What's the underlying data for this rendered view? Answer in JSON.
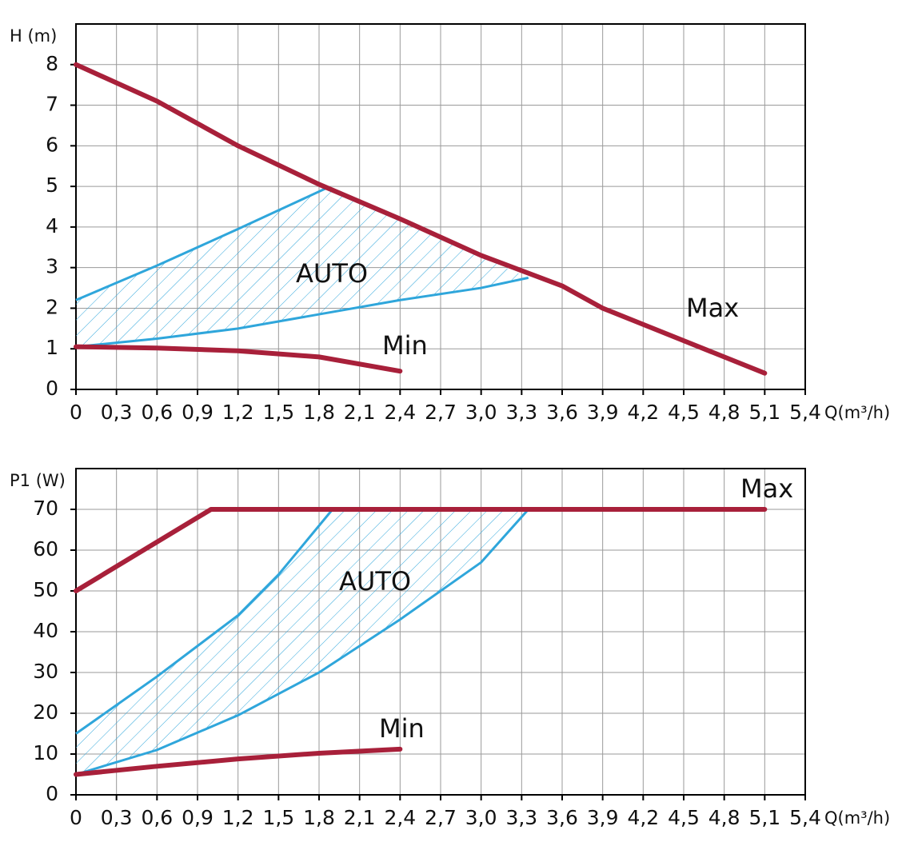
{
  "chart_data": [
    {
      "type": "line",
      "y_label": "H (m)",
      "x_label": "Q(m³/h)",
      "xlim": [
        0,
        5.4
      ],
      "ylim": [
        0,
        9
      ],
      "xticks": [
        0,
        {
          "value": 0.3,
          "label": "0,3"
        },
        {
          "value": 0.6,
          "label": "0,6"
        },
        {
          "value": 0.9,
          "label": "0,9"
        },
        {
          "value": 1.2,
          "label": "1,2"
        },
        {
          "value": 1.5,
          "label": "1,5"
        },
        {
          "value": 1.8,
          "label": "1,8"
        },
        {
          "value": 2.1,
          "label": "2,1"
        },
        {
          "value": 2.4,
          "label": "2,4"
        },
        {
          "value": 2.7,
          "label": "2,7"
        },
        {
          "value": 3.0,
          "label": "3,0"
        },
        {
          "value": 3.3,
          "label": "3,3"
        },
        {
          "value": 3.6,
          "label": "3,6"
        },
        {
          "value": 3.9,
          "label": "3,9"
        },
        {
          "value": 4.2,
          "label": "4,2"
        },
        {
          "value": 4.5,
          "label": "4,5"
        },
        {
          "value": 4.8,
          "label": "4,8"
        },
        {
          "value": 5.1,
          "label": "5,1"
        },
        {
          "value": 5.4,
          "label": "5,4"
        }
      ],
      "yticks": [
        0,
        1,
        2,
        3,
        4,
        5,
        6,
        7,
        8
      ],
      "grid": true,
      "series": [
        {
          "name": "Max",
          "color": "#a8203a",
          "x": [
            0,
            0.6,
            1.2,
            1.8,
            2.4,
            3.0,
            3.6,
            3.9,
            4.2,
            4.8,
            5.1
          ],
          "values": [
            8,
            7.1,
            6.0,
            5.05,
            4.2,
            3.3,
            2.55,
            2.0,
            1.6,
            0.8,
            0.4
          ]
        },
        {
          "name": "Min",
          "color": "#a8203a",
          "x": [
            0,
            0.6,
            1.2,
            1.8,
            2.4
          ],
          "values": [
            1.05,
            1.02,
            0.95,
            0.8,
            0.45
          ]
        }
      ],
      "auto_region": {
        "name": "AUTO",
        "color": "#2fa6db",
        "upper": {
          "x": [
            0,
            0.6,
            1.2,
            1.85
          ],
          "values": [
            2.2,
            3.05,
            3.95,
            4.95
          ]
        },
        "lower": {
          "x": [
            0,
            0.6,
            1.2,
            1.8,
            2.4,
            3.0,
            3.35
          ],
          "values": [
            1.05,
            1.25,
            1.5,
            1.85,
            2.2,
            2.5,
            2.75
          ]
        }
      }
    },
    {
      "type": "line",
      "y_label": "P1 (W)",
      "x_label": "Q(m³/h)",
      "xlim": [
        0,
        5.4
      ],
      "ylim": [
        0,
        80
      ],
      "xticks": [
        0,
        {
          "value": 0.3,
          "label": "0,3"
        },
        {
          "value": 0.6,
          "label": "0,6"
        },
        {
          "value": 0.9,
          "label": "0,9"
        },
        {
          "value": 1.2,
          "label": "1,2"
        },
        {
          "value": 1.5,
          "label": "1,5"
        },
        {
          "value": 1.8,
          "label": "1,8"
        },
        {
          "value": 2.1,
          "label": "2,1"
        },
        {
          "value": 2.4,
          "label": "2,4"
        },
        {
          "value": 2.7,
          "label": "2,7"
        },
        {
          "value": 3.0,
          "label": "3,0"
        },
        {
          "value": 3.3,
          "label": "3,3"
        },
        {
          "value": 3.6,
          "label": "3,6"
        },
        {
          "value": 3.9,
          "label": "3,9"
        },
        {
          "value": 4.2,
          "label": "4,2"
        },
        {
          "value": 4.5,
          "label": "4,5"
        },
        {
          "value": 4.8,
          "label": "4,8"
        },
        {
          "value": 5.1,
          "label": "5,1"
        },
        {
          "value": 5.4,
          "label": "5,4"
        }
      ],
      "yticks": [
        0,
        10,
        20,
        30,
        40,
        50,
        60,
        70
      ],
      "grid": true,
      "series": [
        {
          "name": "Max",
          "color": "#a8203a",
          "x": [
            0,
            1.0,
            5.1
          ],
          "values": [
            50,
            70,
            70
          ]
        },
        {
          "name": "Min",
          "color": "#a8203a",
          "x": [
            0,
            0.6,
            1.2,
            1.8,
            2.4
          ],
          "values": [
            5,
            7,
            8.8,
            10.2,
            11.2
          ]
        }
      ],
      "auto_region": {
        "name": "AUTO",
        "color": "#2fa6db",
        "upper": {
          "x": [
            0,
            0.6,
            1.2,
            1.5,
            1.7,
            1.9
          ],
          "values": [
            15,
            29,
            44,
            54,
            62,
            70
          ]
        },
        "lower": {
          "x": [
            0,
            0.6,
            1.2,
            1.8,
            2.4,
            3.0,
            3.35
          ],
          "values": [
            5,
            11,
            19.5,
            30,
            43,
            57,
            70
          ]
        }
      }
    }
  ]
}
